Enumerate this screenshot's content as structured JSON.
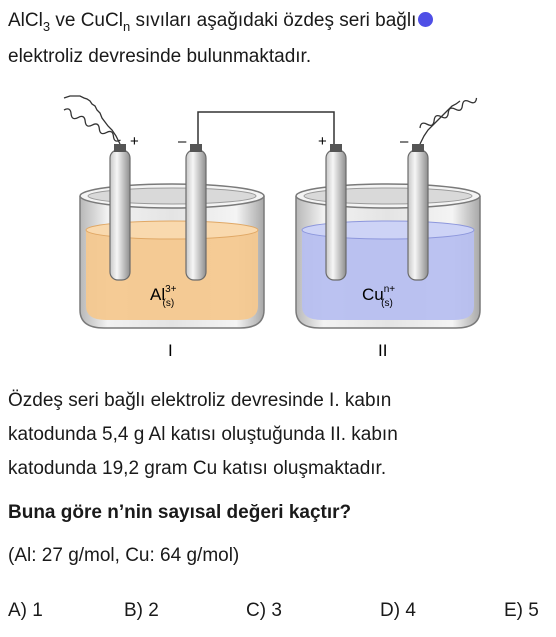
{
  "intro": {
    "salt1": "AlCl",
    "salt1_sub": "3",
    "conj": " ve ",
    "salt2": "CuCl",
    "salt2_sub": "n",
    "line1_rest": " sıvıları aşağıdaki özdeş seri bağlı",
    "line2": "elektroliz devresinde bulunmaktadır."
  },
  "diagram": {
    "beaker1_label": "Al",
    "beaker1_sup": "3+",
    "beaker1_sub": "(s)",
    "beaker2_label": "Cu",
    "beaker2_sup": "n+",
    "beaker2_sub": "(s)",
    "plus": "+",
    "minus": "–",
    "cell1_label": "I",
    "cell2_label": "II",
    "solution1_color": "#f4c88f",
    "solution2_color": "#b7bff0"
  },
  "paragraph": {
    "line1": "Özdeş seri bağlı elektroliz devresinde I. kabın",
    "line2": "katodunda 5,4 g Al katısı oluştuğunda II. kabın",
    "line3": "katodunda 19,2 gram Cu katısı oluşmaktadır."
  },
  "question": "Buna göre n’nin sayısal değeri kaçtır?",
  "given": "(Al: 27 g/mol, Cu: 64 g/mol)",
  "choices": [
    "A) 1",
    "B) 2",
    "C) 3",
    "D) 4",
    "E) 5"
  ]
}
